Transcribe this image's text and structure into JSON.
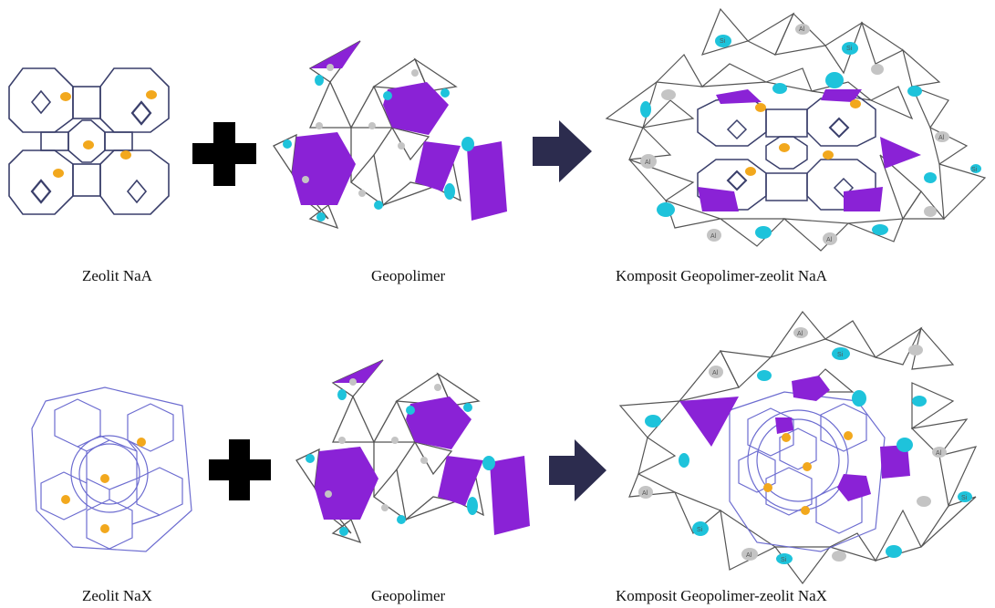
{
  "rows": [
    {
      "zeolite_label": "Zeolit NaA",
      "geopolymer_label": "Geopolimer",
      "composite_label": "Komposit Geopolimer-zeolit NaA"
    },
    {
      "zeolite_label": "Zeolit NaX",
      "geopolymer_label": "Geopolimer",
      "composite_label": "Komposit Geopolimer-zeolit NaX"
    }
  ],
  "atoms": {
    "si": "Si",
    "al": "Al"
  },
  "icons": {
    "plus": "plus-icon",
    "arrow": "arrow-right-icon"
  },
  "colors": {
    "purple": "#8a22d6",
    "cyan": "#1ec3db",
    "orange": "#f2a81d",
    "grey_atom": "#c4c4c4",
    "navy_arrow": "#2c2c4e",
    "naa_frame": "#3a3f6b",
    "nax_frame": "#6c6cd0",
    "tetra_edge": "#555555"
  }
}
